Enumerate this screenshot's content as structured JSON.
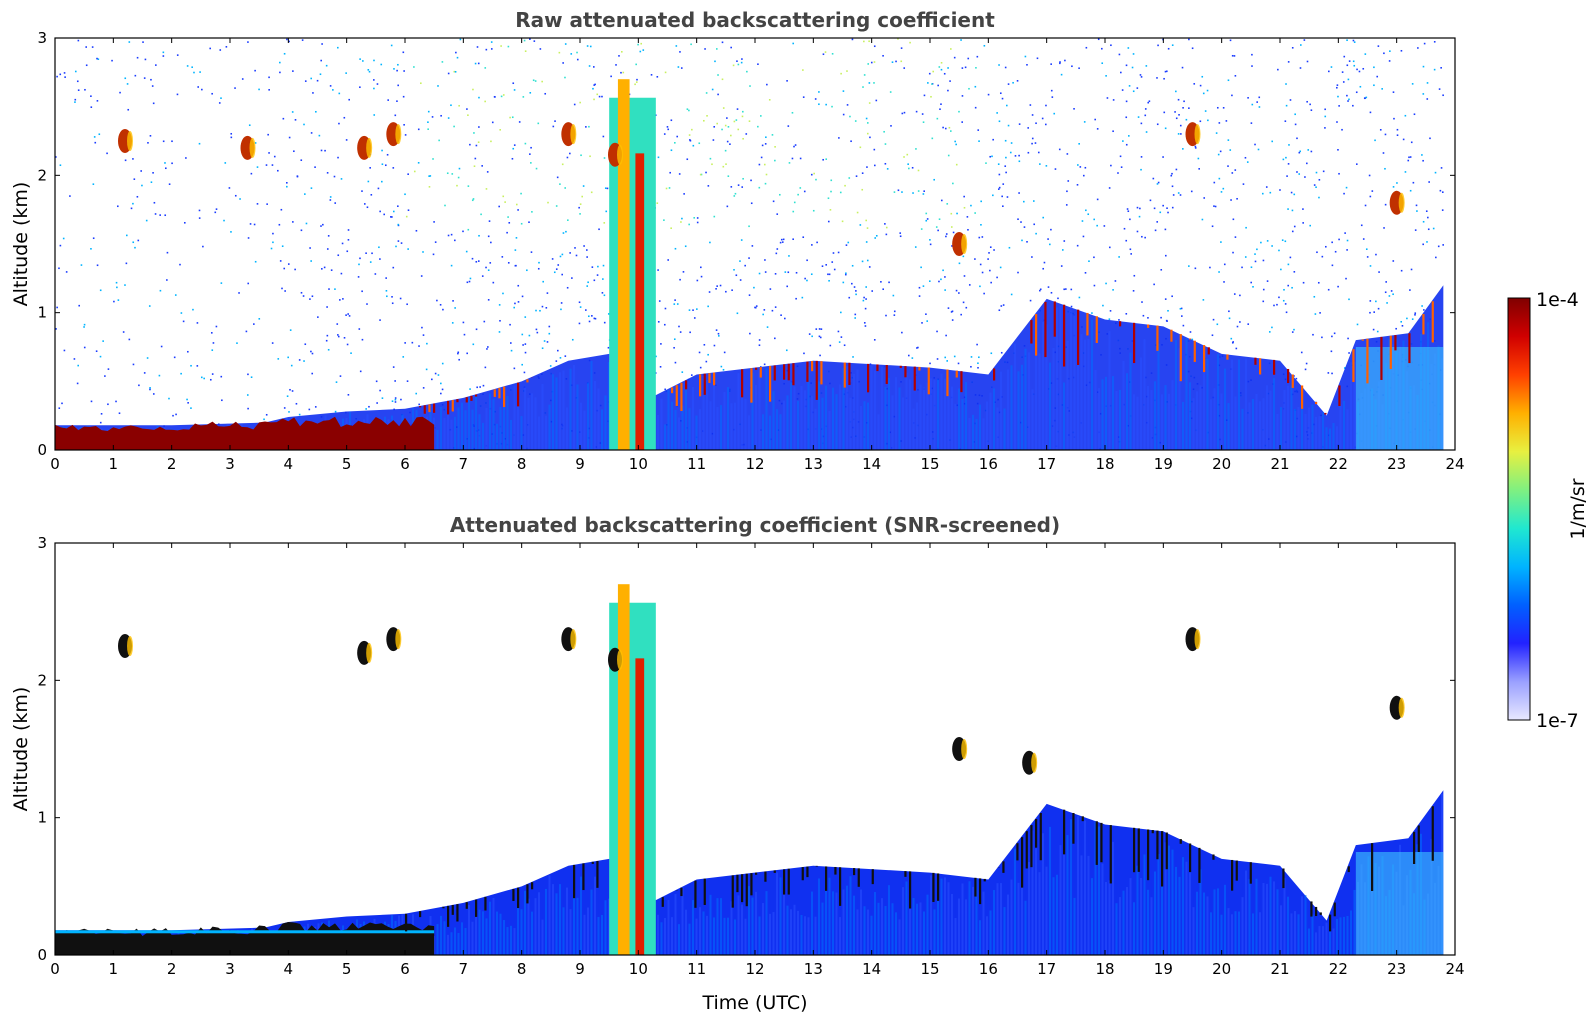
{
  "chart_data": [
    {
      "type": "heatmap",
      "title": "Raw attenuated backscattering coefficient",
      "xlabel": "",
      "ylabel": "Altitude (km)",
      "xlim": [
        0,
        24
      ],
      "ylim": [
        0,
        3
      ],
      "xticks": [
        "0",
        "1",
        "2",
        "3",
        "4",
        "5",
        "6",
        "7",
        "8",
        "9",
        "10",
        "11",
        "12",
        "13",
        "14",
        "15",
        "16",
        "17",
        "18",
        "19",
        "20",
        "21",
        "22",
        "23",
        "24"
      ],
      "yticks": [
        "0",
        "1",
        "2",
        "3"
      ],
      "boundary_layer_top_km": [
        {
          "x": 0,
          "y": 0.18
        },
        {
          "x": 2,
          "y": 0.18
        },
        {
          "x": 3.6,
          "y": 0.2
        },
        {
          "x": 4,
          "y": 0.24
        },
        {
          "x": 5,
          "y": 0.28
        },
        {
          "x": 6,
          "y": 0.3
        },
        {
          "x": 7,
          "y": 0.38
        },
        {
          "x": 8,
          "y": 0.5
        },
        {
          "x": 8.8,
          "y": 0.65
        },
        {
          "x": 9.5,
          "y": 0.7
        },
        {
          "x": 10.3,
          "y": 0.4
        },
        {
          "x": 11,
          "y": 0.55
        },
        {
          "x": 13,
          "y": 0.65
        },
        {
          "x": 15,
          "y": 0.6
        },
        {
          "x": 16,
          "y": 0.55
        },
        {
          "x": 17,
          "y": 1.1
        },
        {
          "x": 18,
          "y": 0.95
        },
        {
          "x": 19,
          "y": 0.9
        },
        {
          "x": 20,
          "y": 0.7
        },
        {
          "x": 21,
          "y": 0.65
        },
        {
          "x": 21.8,
          "y": 0.25
        },
        {
          "x": 22.3,
          "y": 0.8
        },
        {
          "x": 23.2,
          "y": 0.85
        },
        {
          "x": 23.8,
          "y": 1.2
        }
      ],
      "clouds": [
        {
          "x": 1.2,
          "y": 2.25
        },
        {
          "x": 3.3,
          "y": 2.2
        },
        {
          "x": 5.3,
          "y": 2.2
        },
        {
          "x": 5.8,
          "y": 2.3
        },
        {
          "x": 8.8,
          "y": 2.3
        },
        {
          "x": 9.6,
          "y": 2.15
        },
        {
          "x": 15.5,
          "y": 1.5
        },
        {
          "x": 19.5,
          "y": 2.3
        },
        {
          "x": 23.0,
          "y": 1.8
        }
      ],
      "aerosol_plume": {
        "x_start": 9.5,
        "x_end": 10.3,
        "top_km": 2.7
      }
    },
    {
      "type": "heatmap",
      "title": "Attenuated backscattering coefficient (SNR-screened)",
      "xlabel": "Time (UTC)",
      "ylabel": "Altitude (km)",
      "xlim": [
        0,
        24
      ],
      "ylim": [
        0,
        3
      ],
      "xticks": [
        "0",
        "1",
        "2",
        "3",
        "4",
        "5",
        "6",
        "7",
        "8",
        "9",
        "10",
        "11",
        "12",
        "13",
        "14",
        "15",
        "16",
        "17",
        "18",
        "19",
        "20",
        "21",
        "22",
        "23",
        "24"
      ],
      "yticks": [
        "0",
        "1",
        "2",
        "3"
      ],
      "boundary_layer_top_km": [
        {
          "x": 0,
          "y": 0.18
        },
        {
          "x": 2,
          "y": 0.18
        },
        {
          "x": 3.6,
          "y": 0.2
        },
        {
          "x": 4,
          "y": 0.24
        },
        {
          "x": 5,
          "y": 0.28
        },
        {
          "x": 6,
          "y": 0.3
        },
        {
          "x": 7,
          "y": 0.38
        },
        {
          "x": 8,
          "y": 0.5
        },
        {
          "x": 8.8,
          "y": 0.65
        },
        {
          "x": 9.5,
          "y": 0.7
        },
        {
          "x": 10.3,
          "y": 0.4
        },
        {
          "x": 11,
          "y": 0.55
        },
        {
          "x": 13,
          "y": 0.65
        },
        {
          "x": 15,
          "y": 0.6
        },
        {
          "x": 16,
          "y": 0.55
        },
        {
          "x": 17,
          "y": 1.1
        },
        {
          "x": 18,
          "y": 0.95
        },
        {
          "x": 19,
          "y": 0.9
        },
        {
          "x": 20,
          "y": 0.7
        },
        {
          "x": 21,
          "y": 0.65
        },
        {
          "x": 21.8,
          "y": 0.25
        },
        {
          "x": 22.3,
          "y": 0.8
        },
        {
          "x": 23.2,
          "y": 0.85
        },
        {
          "x": 23.8,
          "y": 1.2
        }
      ],
      "clouds": [
        {
          "x": 1.2,
          "y": 2.25
        },
        {
          "x": 5.3,
          "y": 2.2
        },
        {
          "x": 5.8,
          "y": 2.3
        },
        {
          "x": 8.8,
          "y": 2.3
        },
        {
          "x": 9.6,
          "y": 2.15
        },
        {
          "x": 15.5,
          "y": 1.5
        },
        {
          "x": 16.7,
          "y": 1.4
        },
        {
          "x": 19.5,
          "y": 2.3
        },
        {
          "x": 23.0,
          "y": 1.8
        }
      ],
      "aerosol_plume": {
        "x_start": 9.5,
        "x_end": 10.3,
        "top_km": 2.7
      }
    }
  ],
  "colorbar": {
    "label": "1/m/sr",
    "max_label": "1e-4",
    "min_label": "1e-7",
    "colors": [
      "#e8e8ff",
      "#9aa0ff",
      "#2222ff",
      "#0060ff",
      "#00b4ff",
      "#20e8d0",
      "#80f080",
      "#e8f040",
      "#ffb000",
      "#ff4000",
      "#d00000",
      "#800000"
    ]
  }
}
